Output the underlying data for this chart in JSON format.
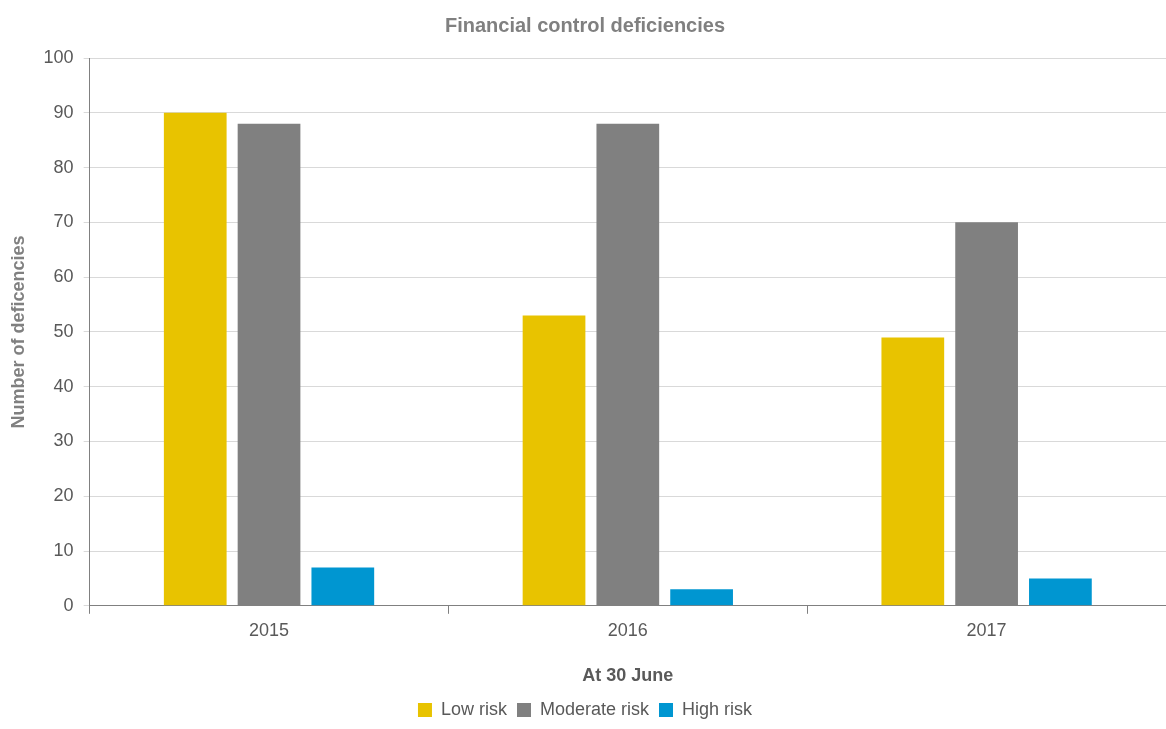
{
  "chart_data": {
    "type": "bar",
    "title": "Financial control deficiencies",
    "xlabel": "At 30 June",
    "ylabel": "Number of deficencies",
    "categories": [
      "2015",
      "2016",
      "2017"
    ],
    "series": [
      {
        "name": "Low risk",
        "color": "#e8c300",
        "values": [
          90,
          53,
          49
        ]
      },
      {
        "name": "Moderate risk",
        "color": "#808080",
        "values": [
          88,
          88,
          70
        ]
      },
      {
        "name": "High risk",
        "color": "#0096d1",
        "values": [
          7,
          3,
          5
        ]
      }
    ],
    "ylim": [
      0,
      100
    ],
    "yticks": [
      0,
      10,
      20,
      30,
      40,
      50,
      60,
      70,
      80,
      90,
      100
    ],
    "grid": "y",
    "legend": "bottom"
  }
}
